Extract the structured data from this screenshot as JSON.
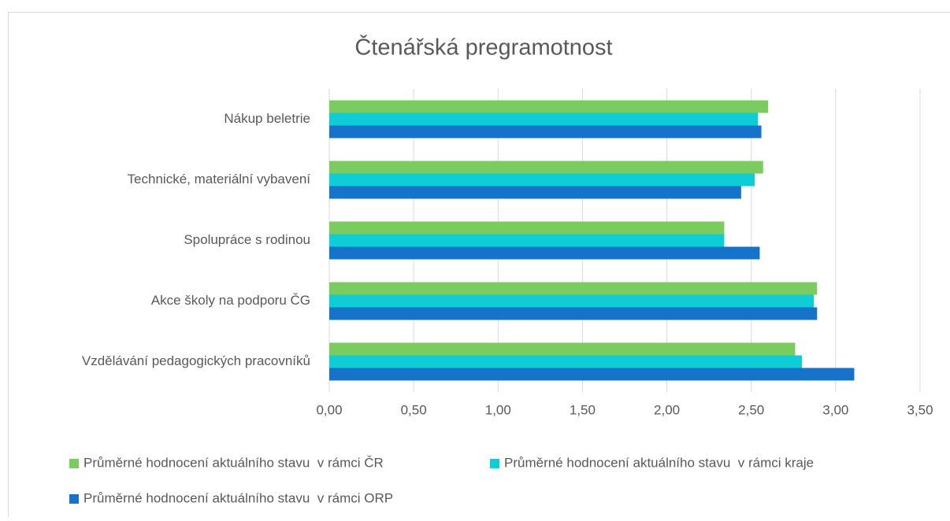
{
  "chart_data": {
    "type": "barh",
    "title": "Čtenářská pregramotnost",
    "categories": [
      "Nákup beletrie",
      "Technické, materiální vybavení",
      "Spolupráce s rodinou",
      "Akce školy na podporu ČG",
      "Vzdělávání pedagogických pracovníků"
    ],
    "series": [
      {
        "name": "Průměrné hodnocení aktuálního stavu  v rámci ČR",
        "color": "#7acc5f",
        "values": [
          2.6,
          2.57,
          2.34,
          2.89,
          2.76
        ]
      },
      {
        "name": "Průměrné hodnocení aktuálního stavu  v rámci kraje",
        "color": "#0fcdd6",
        "values": [
          2.54,
          2.52,
          2.34,
          2.87,
          2.8
        ]
      },
      {
        "name": "Průměrné hodnocení aktuálního stavu  v rámci ORP",
        "color": "#1573c9",
        "values": [
          2.56,
          2.44,
          2.55,
          2.89,
          3.11
        ]
      }
    ],
    "xlim": [
      0,
      3.5
    ],
    "xticks": [
      {
        "value": 0,
        "label": "0,00"
      },
      {
        "value": 0.5,
        "label": "0,50"
      },
      {
        "value": 1,
        "label": "1,00"
      },
      {
        "value": 1.5,
        "label": "1,50"
      },
      {
        "value": 2,
        "label": "2,00"
      },
      {
        "value": 2.5,
        "label": "2,50"
      },
      {
        "value": 3,
        "label": "3,00"
      },
      {
        "value": 3.5,
        "label": "3,50"
      }
    ],
    "grid": true,
    "legend": "bottom"
  }
}
